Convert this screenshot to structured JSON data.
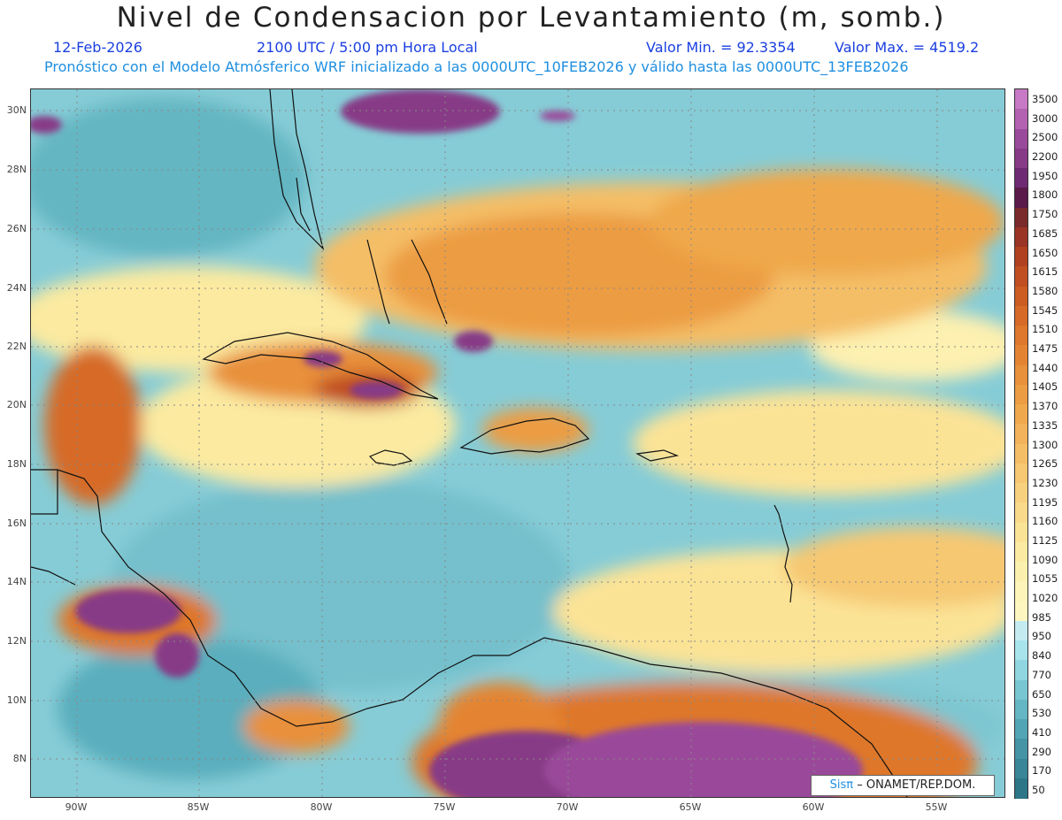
{
  "title": "Nivel de Condensacion por Levantamiento (m, somb.)",
  "date": "12-Feb-2026",
  "time": "2100 UTC / 5:00 pm Hora Local",
  "min": "Valor Min. = 92.3354",
  "max": "Valor Max. = 4519.2",
  "forecast": "Pronóstico con el Modelo Atmósferico WRF inicializado a las 0000UTC_10FEB2026 y válido hasta las  0000UTC_13FEB2026",
  "credit": {
    "logo": "Sisπ",
    "text": "– ONAMET/REP.DOM."
  },
  "lat_labels": [
    "30N",
    "28N",
    "26N",
    "24N",
    "22N",
    "20N",
    "18N",
    "16N",
    "14N",
    "12N",
    "10N",
    "8N"
  ],
  "lon_labels": [
    "90W",
    "85W",
    "80W",
    "75W",
    "70W",
    "65W",
    "60W",
    "55W"
  ],
  "colorbar": {
    "labels": [
      "3500",
      "3000",
      "2500",
      "2200",
      "1950",
      "1800",
      "1750",
      "1685",
      "1650",
      "1615",
      "1580",
      "1545",
      "1510",
      "1475",
      "1440",
      "1405",
      "1370",
      "1335",
      "1300",
      "1265",
      "1230",
      "1195",
      "1160",
      "1125",
      "1090",
      "1055",
      "1020",
      "985",
      "950",
      "840",
      "770",
      "650",
      "530",
      "410",
      "290",
      "170",
      "50"
    ],
    "colors": [
      "#c779c5",
      "#b262b0",
      "#9a4a9a",
      "#873a86",
      "#6e2a72",
      "#5a1a4a",
      "#7a2a2a",
      "#9a3424",
      "#b0401f",
      "#c04e20",
      "#cc5c22",
      "#d66a26",
      "#de772b",
      "#e48432",
      "#e8903a",
      "#ec9c42",
      "#efa84c",
      "#f2b35a",
      "#f4be66",
      "#f6c872",
      "#f8d17e",
      "#f9da8a",
      "#fbe396",
      "#fbeaa2",
      "#fcf0ae",
      "#fdf4ba",
      "#fdf6c0",
      "#c4ecf0",
      "#a8e4ec",
      "#8fd6e0",
      "#78c6d2",
      "#64b6c4",
      "#52a5b5",
      "#4494a6",
      "#388697",
      "#2c7688"
    ]
  },
  "colors": {
    "title": "#222222",
    "subtitle": "#1a3fe0",
    "forecast": "#1e8fe0",
    "coast": "#111111"
  }
}
